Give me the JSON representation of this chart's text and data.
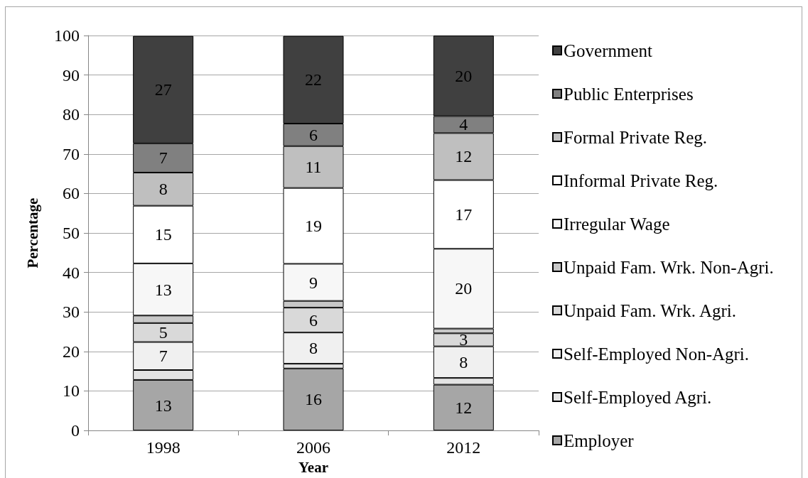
{
  "chart_data": {
    "type": "bar",
    "stacked": true,
    "xlabel": "Year",
    "ylabel": "Percentage",
    "categories": [
      "1998",
      "2006",
      "2012"
    ],
    "ylim": [
      0,
      100
    ],
    "yticks": [
      0,
      10,
      20,
      30,
      40,
      50,
      60,
      70,
      80,
      90,
      100
    ],
    "grid": "y",
    "legend": "right",
    "series": [
      {
        "name": "Employer",
        "color": "#a6a6a6",
        "values": [
          12.8,
          15.7,
          11.6
        ],
        "value_labels": [
          "13",
          "16",
          "12"
        ]
      },
      {
        "name": "Self-Employed Agri.",
        "color": "#e3e3e3",
        "values": [
          2.5,
          1.2,
          1.7
        ],
        "value_labels": [
          null,
          null,
          null
        ]
      },
      {
        "name": "Self-Employed Non-Agri.",
        "color": "#f0f0f0",
        "values": [
          7.1,
          7.9,
          8.0
        ],
        "value_labels": [
          "7",
          "8",
          "8"
        ]
      },
      {
        "name": "Unpaid Fam. Wrk. Agri.",
        "color": "#d9d9d9",
        "values": [
          4.8,
          6.3,
          3.3
        ],
        "value_labels": [
          "5",
          "6",
          "3"
        ]
      },
      {
        "name": "Unpaid Fam. Wrk. Non-Agri.",
        "color": "#c8c8c8",
        "values": [
          1.9,
          1.7,
          1.2
        ],
        "value_labels": [
          null,
          null,
          null
        ]
      },
      {
        "name": "Irregular Wage",
        "color": "#f7f7f7",
        "values": [
          13.2,
          9.4,
          20.2
        ],
        "value_labels": [
          "13",
          "9",
          "20"
        ]
      },
      {
        "name": "Informal Private Reg.",
        "color": "#ffffff",
        "values": [
          14.6,
          19.2,
          17.4
        ],
        "value_labels": [
          "15",
          "19",
          "17"
        ]
      },
      {
        "name": "Formal Private Reg.",
        "color": "#bfbfbf",
        "values": [
          8.4,
          10.6,
          11.9
        ],
        "value_labels": [
          "8",
          "11",
          "12"
        ]
      },
      {
        "name": "Public Enterprises",
        "color": "#808080",
        "values": [
          7.4,
          5.7,
          4.3
        ],
        "value_labels": [
          "7",
          "6",
          "4"
        ]
      },
      {
        "name": "Government",
        "color": "#404040",
        "values": [
          27.2,
          22.2,
          20.4
        ],
        "value_labels": [
          "27",
          "22",
          "20"
        ]
      }
    ]
  }
}
